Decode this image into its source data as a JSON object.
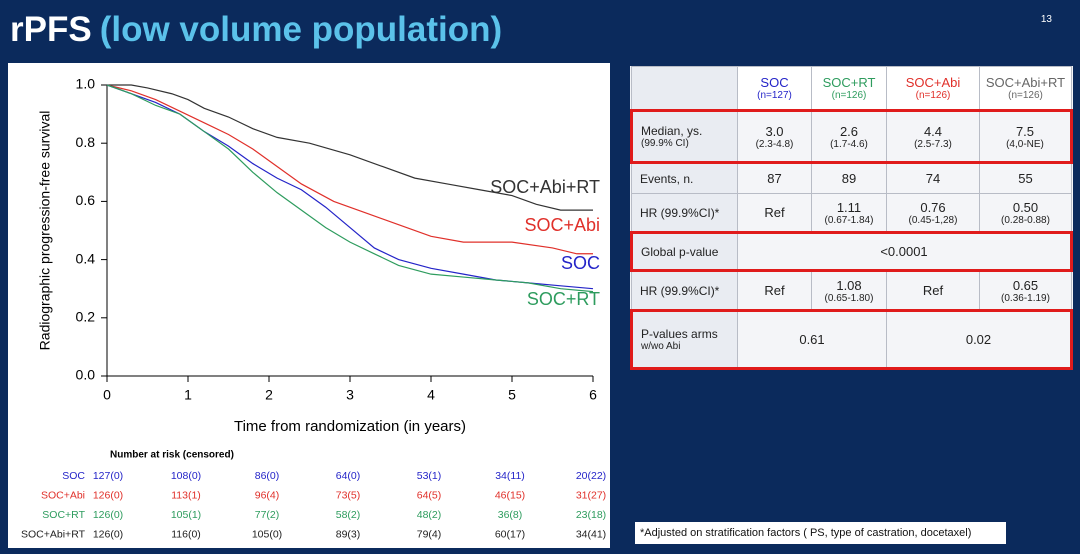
{
  "title": "rPFS",
  "subtitle": "(low volume population)",
  "page_number": "13",
  "chart_data": {
    "type": "line",
    "step": true,
    "y_label": "Radiographic progression-free survival",
    "x_label": "Time from randomization (in years)",
    "xlim": [
      0,
      6
    ],
    "xticks": [
      0,
      1,
      2,
      3,
      4,
      5,
      6
    ],
    "ylim": [
      0,
      1
    ],
    "yticks": [
      {
        "value": 0,
        "label": "0.0"
      },
      0.2,
      0.4,
      0.6,
      0.8,
      {
        "value": 1,
        "label": "1.0"
      }
    ],
    "series": [
      {
        "name": "SOC+Abi+RT",
        "color": "#333333",
        "x": [
          0,
          0.3,
          0.5,
          0.8,
          1.0,
          1.2,
          1.5,
          1.8,
          2.1,
          2.5,
          3.0,
          3.4,
          3.8,
          4.2,
          4.6,
          5.0,
          5.3,
          5.6,
          6.0
        ],
        "values": [
          1.0,
          1.0,
          0.99,
          0.97,
          0.95,
          0.92,
          0.89,
          0.85,
          0.82,
          0.8,
          0.76,
          0.72,
          0.68,
          0.66,
          0.64,
          0.62,
          0.59,
          0.57,
          0.57
        ]
      },
      {
        "name": "SOC+Abi",
        "color": "#e0302a",
        "x": [
          0,
          0.3,
          0.6,
          0.9,
          1.2,
          1.5,
          1.8,
          2.1,
          2.4,
          2.8,
          3.2,
          3.6,
          4.0,
          4.4,
          5.0,
          5.5,
          5.8,
          6.0
        ],
        "values": [
          1.0,
          0.98,
          0.95,
          0.91,
          0.87,
          0.83,
          0.78,
          0.72,
          0.66,
          0.6,
          0.56,
          0.52,
          0.48,
          0.46,
          0.46,
          0.44,
          0.42,
          0.42
        ]
      },
      {
        "name": "SOC",
        "color": "#2424c8",
        "x": [
          0,
          0.3,
          0.6,
          0.9,
          1.2,
          1.5,
          1.8,
          2.1,
          2.4,
          2.7,
          3.0,
          3.3,
          3.6,
          4.0,
          4.4,
          4.8,
          5.2,
          5.6,
          6.0
        ],
        "values": [
          1.0,
          0.97,
          0.94,
          0.9,
          0.84,
          0.79,
          0.73,
          0.68,
          0.64,
          0.58,
          0.51,
          0.44,
          0.4,
          0.37,
          0.35,
          0.33,
          0.32,
          0.31,
          0.3
        ]
      },
      {
        "name": "SOC+RT",
        "color": "#2e9c5e",
        "x": [
          0,
          0.3,
          0.6,
          0.9,
          1.2,
          1.5,
          1.8,
          2.1,
          2.4,
          2.7,
          3.0,
          3.3,
          3.6,
          4.0,
          4.4,
          4.8,
          5.2,
          5.6,
          6.0
        ],
        "values": [
          1.0,
          0.97,
          0.93,
          0.9,
          0.84,
          0.78,
          0.7,
          0.63,
          0.57,
          0.51,
          0.46,
          0.42,
          0.38,
          0.35,
          0.34,
          0.33,
          0.32,
          0.3,
          0.29
        ]
      }
    ],
    "risk_table": {
      "title": "Number at risk (censored)",
      "rows": [
        {
          "name": "SOC",
          "color": "#2424c8",
          "values": [
            "127(0)",
            "108(0)",
            "86(0)",
            "64(0)",
            "53(1)",
            "34(11)",
            "20(22)"
          ]
        },
        {
          "name": "SOC+Abi",
          "color": "#e0302a",
          "values": [
            "126(0)",
            "113(1)",
            "96(4)",
            "73(5)",
            "64(5)",
            "46(15)",
            "31(27)"
          ]
        },
        {
          "name": "SOC+RT",
          "color": "#2e9c5e",
          "values": [
            "126(0)",
            "105(1)",
            "77(2)",
            "58(2)",
            "48(2)",
            "36(8)",
            "23(18)"
          ]
        },
        {
          "name": "SOC+Abi+RT",
          "color": "#222222",
          "values": [
            "126(0)",
            "116(0)",
            "105(0)",
            "89(3)",
            "79(4)",
            "60(17)",
            "34(41)"
          ]
        }
      ]
    }
  },
  "table": {
    "header": [
      {
        "lines": [
          "SOC",
          "(n=127)"
        ],
        "color": "#2424c8"
      },
      {
        "lines": [
          "SOC+RT",
          "(n=126)"
        ],
        "color": "#2e9c5e"
      },
      {
        "lines": [
          "SOC+Abi",
          "(n=126)"
        ],
        "color": "#e0302a"
      },
      {
        "lines": [
          "SOC+Abi+RT",
          "(n=126)"
        ],
        "color": "#666666"
      }
    ],
    "rows": [
      {
        "label": [
          "Median, ys.",
          "(99.9% CI)"
        ],
        "highlight": true,
        "cells": [
          [
            "3.0",
            "(2.3-4.8)"
          ],
          [
            "2.6",
            "(1.7-4.6)"
          ],
          [
            "4.4",
            "(2.5-7.3)"
          ],
          [
            "7.5",
            "(4,0-NE)"
          ]
        ]
      },
      {
        "label": [
          "Events, n."
        ],
        "highlight": false,
        "cells": [
          [
            "87"
          ],
          [
            "89"
          ],
          [
            "74"
          ],
          [
            "55"
          ]
        ]
      },
      {
        "label": [
          "HR (99.9%CI)*"
        ],
        "highlight": false,
        "cells": [
          [
            "Ref"
          ],
          [
            "1.11",
            "(0.67-1.84)"
          ],
          [
            "0.76",
            "(0.45-1,28)"
          ],
          [
            "0.50",
            "(0.28-0.88)"
          ]
        ]
      },
      {
        "label": [
          "Global p-value"
        ],
        "highlight": true,
        "cells": [
          [
            "<0.0001"
          ]
        ]
      },
      {
        "label": [
          "HR (99.9%CI)*"
        ],
        "highlight": false,
        "cells": [
          [
            "Ref"
          ],
          [
            "1.08",
            "(0.65-1.80)"
          ],
          [
            "Ref"
          ],
          [
            "0.65",
            "(0.36-1.19)"
          ]
        ]
      },
      {
        "label": [
          "P-values arms",
          "w/wo Abi"
        ],
        "highlight": true,
        "cells": [
          [
            "0.61"
          ],
          [
            "0.02"
          ]
        ]
      }
    ]
  },
  "footnote": "*Adjusted on stratification factors ( PS, type of castration, docetaxel)"
}
